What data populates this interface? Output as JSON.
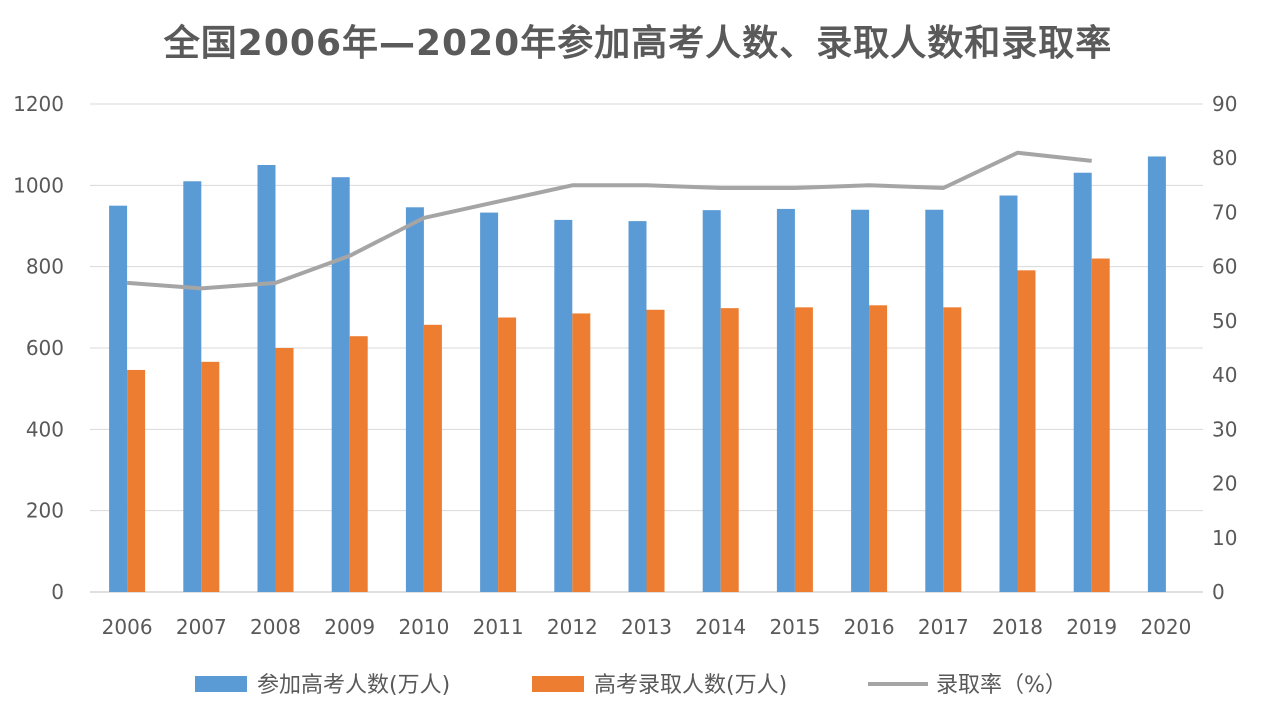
{
  "chart_data": {
    "type": "bar",
    "title": "全国2006年—2020年参加高考人数、录取人数和录取率",
    "categories": [
      "2006",
      "2007",
      "2008",
      "2009",
      "2010",
      "2011",
      "2012",
      "2013",
      "2014",
      "2015",
      "2016",
      "2017",
      "2018",
      "2019",
      "2020"
    ],
    "series": [
      {
        "name": "参加高考人数(万人)",
        "type": "bar",
        "axis": "left",
        "color": "#5b9bd5",
        "values": [
          950,
          1010,
          1050,
          1020,
          946,
          933,
          915,
          912,
          939,
          942,
          940,
          940,
          975,
          1031,
          1071
        ]
      },
      {
        "name": "高考录取人数(万人)",
        "type": "bar",
        "axis": "left",
        "color": "#ed7d31",
        "values": [
          546,
          566,
          600,
          629,
          657,
          675,
          685,
          694,
          698,
          700,
          705,
          700,
          791,
          820,
          null
        ]
      },
      {
        "name": "录取率（%）",
        "type": "line",
        "axis": "right",
        "color": "#a5a5a5",
        "values": [
          57,
          56,
          57,
          62,
          69,
          72,
          75,
          75,
          74.5,
          74.5,
          75,
          74.5,
          81,
          79.5,
          null
        ]
      }
    ],
    "y_left": {
      "ylim": [
        0,
        1200
      ],
      "ticks": [
        "0",
        "200",
        "400",
        "600",
        "800",
        "1000",
        "1200"
      ]
    },
    "y_right": {
      "ylim": [
        0,
        90
      ],
      "ticks": [
        "0",
        "10",
        "20",
        "30",
        "40",
        "50",
        "60",
        "70",
        "80",
        "90"
      ]
    },
    "grid": true,
    "legend_position": "bottom"
  }
}
